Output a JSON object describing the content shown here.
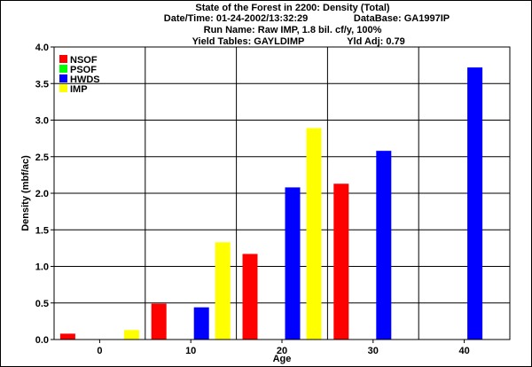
{
  "header": {
    "title": "State of the Forest in 2200: Density (Total)",
    "datetime_label": "Date/Time: 01-24-2002/13:32:29",
    "database_label": "DataBase: GA1997IP",
    "run_label": "Run Name: Raw IMP, 1.8 bil. cf/y, 100%",
    "yield_label": "Yield Tables: GAYLDIMP",
    "yld_adj_label": "Yld Adj: 0.79"
  },
  "chart_data": {
    "type": "bar",
    "categories": [
      "0",
      "10",
      "20",
      "30",
      "40"
    ],
    "xlabel": "Age",
    "ylabel": "Density (mbf/ac)",
    "ylim": [
      0,
      4.0
    ],
    "yticks": [
      "0.0",
      "0.5",
      "1.0",
      "1.5",
      "2.0",
      "2.5",
      "3.0",
      "3.5",
      "4.0"
    ],
    "grid": true,
    "legend_position": "top-left",
    "series": [
      {
        "name": "NSOF",
        "color": "#ff0000",
        "values": [
          0.08,
          0.49,
          1.17,
          2.13,
          0
        ]
      },
      {
        "name": "PSOF",
        "color": "#00ff00",
        "values": [
          0,
          0,
          0,
          0,
          0
        ]
      },
      {
        "name": "HWDS",
        "color": "#0000ff",
        "values": [
          0,
          0.44,
          2.08,
          2.58,
          3.72
        ]
      },
      {
        "name": "IMP",
        "color": "#ffff00",
        "values": [
          0.13,
          1.33,
          2.89,
          0,
          0
        ]
      }
    ]
  }
}
